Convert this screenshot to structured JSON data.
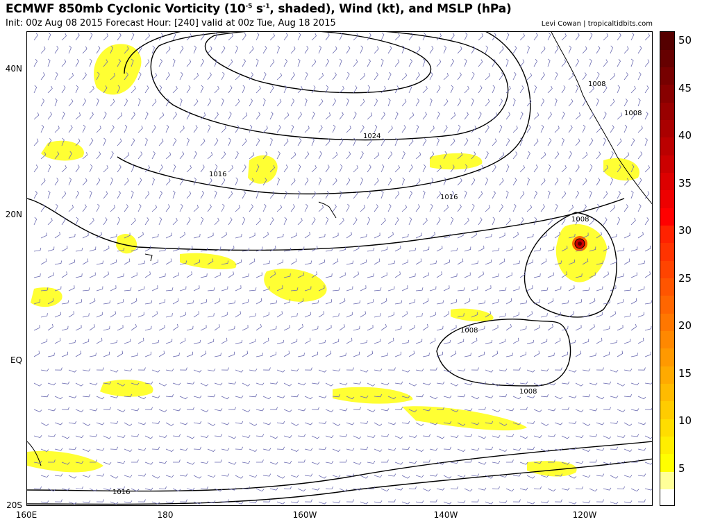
{
  "header": {
    "title_main": "ECMWF 850mb Cyclonic Vorticity (10",
    "title_exp": "-5",
    "title_unit": " s",
    "title_unit_exp": "-1",
    "title_rest": ", shaded), Wind (kt), and MSLP (hPa)",
    "subtitle": "Init: 00z Aug 08 2015   Forecast Hour: [240]   valid at 00z Tue, Aug 18 2015",
    "credit": "Levi Cowan | tropicaltidbits.com"
  },
  "axes": {
    "lat_labels": [
      "40N",
      "20N",
      "EQ",
      "20S"
    ],
    "lon_labels": [
      "160E",
      "180",
      "160W",
      "140W",
      "120W"
    ]
  },
  "isobar_labels": [
    "1024",
    "1016",
    "1016",
    "1008",
    "1008",
    "1008",
    "1008",
    "1008",
    "1016"
  ],
  "colorbar": {
    "labels": [
      "50",
      "45",
      "40",
      "35",
      "30",
      "25",
      "20",
      "15",
      "10",
      "5"
    ],
    "colors": [
      "#ffffff",
      "#ffff99",
      "#ffff00",
      "#ffee00",
      "#ffdd00",
      "#ffcc00",
      "#ffbb00",
      "#ffaa00",
      "#ff9900",
      "#ff8800",
      "#ff7700",
      "#ff6600",
      "#ff5500",
      "#ff4400",
      "#ff3300",
      "#ff2200",
      "#ff0000",
      "#ee0000",
      "#dd0000",
      "#cc0000",
      "#bb0000",
      "#aa0000",
      "#990000",
      "#880000",
      "#770000",
      "#660000",
      "#550000"
    ]
  }
}
